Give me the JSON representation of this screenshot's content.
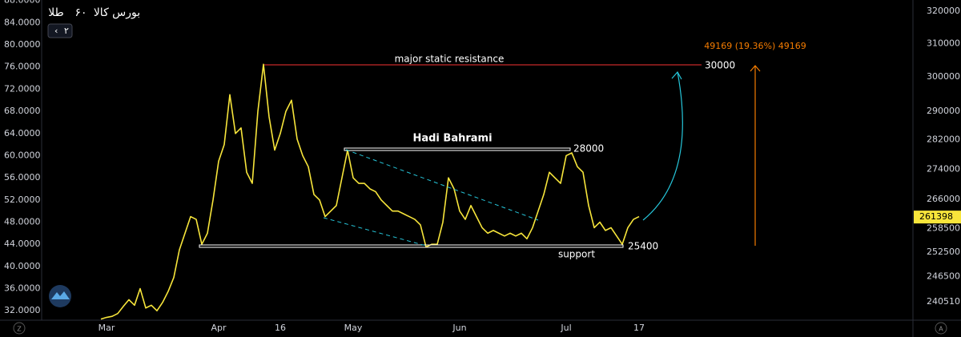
{
  "chart_data": {
    "type": "line",
    "header": [
      "طلا",
      "۶۰",
      "بورس کالا"
    ],
    "header_badge": "۲",
    "categories": [
      null,
      "Mar",
      null,
      null,
      null,
      null,
      null,
      null,
      null,
      null,
      null,
      null,
      null,
      null,
      null,
      null,
      null,
      null,
      null,
      null,
      null,
      "Apr",
      null,
      null,
      null,
      null,
      null,
      null,
      null,
      null,
      null,
      null,
      "16",
      null,
      null,
      null,
      null,
      null,
      null,
      null,
      null,
      null,
      null,
      null,
      null,
      "May",
      null,
      null,
      null,
      null,
      null,
      null,
      null,
      null,
      null,
      null,
      null,
      null,
      null,
      null,
      null,
      null,
      null,
      null,
      "Jun",
      null,
      null,
      null,
      null,
      null,
      null,
      null,
      null,
      null,
      null,
      null,
      null,
      null,
      null,
      null,
      null,
      null,
      null,
      "Jul",
      null,
      null,
      null,
      null,
      null,
      null,
      null,
      null,
      null,
      null,
      null,
      null,
      "17"
    ],
    "series": [
      {
        "color": "#f7e53b",
        "values": [
          30.5,
          30.8,
          31,
          31.5,
          32.8,
          34,
          33,
          36,
          32.5,
          33,
          32,
          33.5,
          35.5,
          38,
          43,
          46,
          49,
          48.5,
          44,
          46,
          52,
          59,
          62,
          71,
          64,
          65,
          57,
          55,
          68,
          76.5,
          67,
          61,
          64,
          68,
          70,
          63,
          60,
          58,
          53,
          52,
          49,
          50,
          51,
          56,
          61,
          56,
          55,
          55,
          54,
          53.5,
          52,
          51,
          50,
          50,
          49.5,
          49,
          48.5,
          47.5,
          43.5,
          44,
          44,
          48,
          56,
          54,
          50,
          48.5,
          51,
          49,
          47,
          46,
          46.5,
          46,
          45.5,
          46,
          45.5,
          46,
          45,
          47,
          50,
          53,
          57,
          56,
          55,
          60,
          60.5,
          58,
          57,
          51,
          47,
          48,
          46.5,
          47,
          45.5,
          44,
          47,
          48.5,
          49
        ]
      }
    ],
    "ylim": [
      30.3,
      88.1
    ],
    "yticks": [
      {
        "value": 88,
        "label": "88.0000"
      },
      {
        "value": 84,
        "label": "84.0000"
      },
      {
        "value": 80,
        "label": "80.0000"
      },
      {
        "value": 76,
        "label": "76.0000"
      },
      {
        "value": 72,
        "label": "72.0000"
      },
      {
        "value": 68,
        "label": "68.0000"
      },
      {
        "value": 64,
        "label": "64.0000"
      },
      {
        "value": 60,
        "label": "60.0000"
      },
      {
        "value": 56,
        "label": "56.0000"
      },
      {
        "value": 52,
        "label": "52.0000"
      },
      {
        "value": 48,
        "label": "48.0000"
      },
      {
        "value": 44,
        "label": "44.0000"
      },
      {
        "value": 40,
        "label": "40.0000"
      },
      {
        "value": 36,
        "label": "36.0000"
      },
      {
        "value": 32,
        "label": "32.0000"
      }
    ],
    "y2lim": [
      236200,
      323540
    ],
    "y2scale": "log",
    "y2ticks": [
      320000,
      310000,
      300000,
      290000,
      282000,
      274000,
      266000,
      258500,
      252500,
      246500,
      240510
    ],
    "last_price": 261398,
    "grid": false,
    "annotations": {
      "resistance_label": "major static resistance",
      "resistance_value": "30000",
      "author": "Hadi Bahrami",
      "top_value": "28000",
      "support_label": "support",
      "support_value": "25400",
      "target": "49169 (19.36%) 49169"
    },
    "corner_left": "Z",
    "corner_right": "A"
  }
}
